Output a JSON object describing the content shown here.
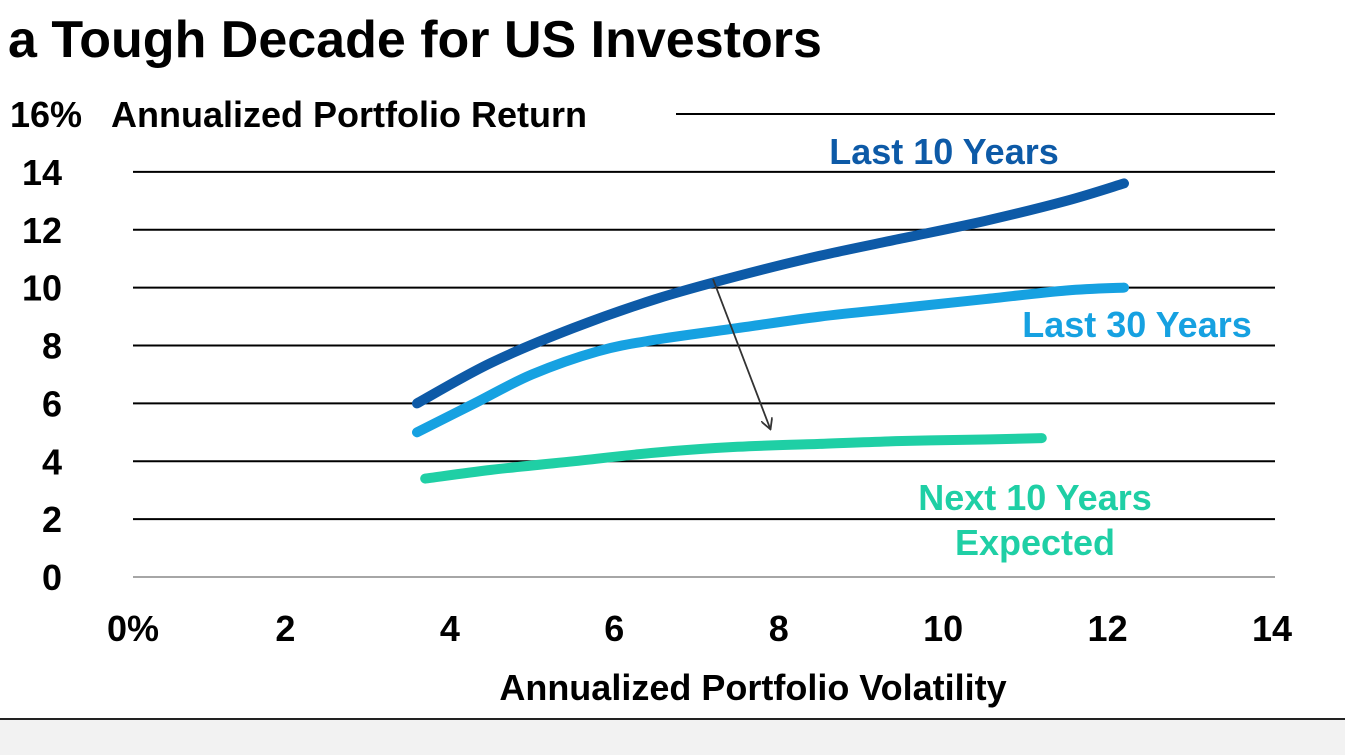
{
  "title": "a Tough Decade for US Investors",
  "chart_data": {
    "type": "line",
    "title": "a Tough Decade for US Investors",
    "ylabel": "Annualized Portfolio Return",
    "ylabel_top_tick": "16%",
    "xlabel": "Annualized Portfolio Volatility",
    "xlim": [
      0,
      14
    ],
    "ylim": [
      0,
      16
    ],
    "x_ticks": [
      "0%",
      "2",
      "4",
      "6",
      "8",
      "10",
      "12",
      "14"
    ],
    "x_tick_values": [
      0,
      2,
      4,
      6,
      8,
      10,
      12,
      14
    ],
    "y_ticks": [
      "0",
      "2",
      "4",
      "6",
      "8",
      "10",
      "12",
      "14"
    ],
    "y_tick_values": [
      0,
      2,
      4,
      6,
      8,
      10,
      12,
      14,
      16
    ],
    "grid": true,
    "series": [
      {
        "name": "Last 10 Years",
        "label_lines": [
          "Last 10 Years"
        ],
        "color": "#0d5aa7",
        "points": [
          [
            3.6,
            6.0
          ],
          [
            4.5,
            7.4
          ],
          [
            5.5,
            8.6
          ],
          [
            6.5,
            9.6
          ],
          [
            7.5,
            10.4
          ],
          [
            8.5,
            11.1
          ],
          [
            9.5,
            11.7
          ],
          [
            10.5,
            12.3
          ],
          [
            11.5,
            13.0
          ],
          [
            12.2,
            13.6
          ]
        ]
      },
      {
        "name": "Last 30 Years",
        "label_lines": [
          "Last 30 Years"
        ],
        "color": "#16a1e1",
        "points": [
          [
            3.6,
            5.0
          ],
          [
            4.3,
            6.0
          ],
          [
            5.0,
            7.0
          ],
          [
            5.8,
            7.8
          ],
          [
            6.5,
            8.2
          ],
          [
            7.5,
            8.6
          ],
          [
            8.5,
            9.0
          ],
          [
            9.5,
            9.3
          ],
          [
            10.5,
            9.6
          ],
          [
            11.5,
            9.9
          ],
          [
            12.2,
            10.0
          ]
        ]
      },
      {
        "name": "Next 10 Years Expected",
        "label_lines": [
          "Next 10 Years",
          "Expected"
        ],
        "color": "#1fcfa5",
        "points": [
          [
            3.7,
            3.4
          ],
          [
            4.5,
            3.7
          ],
          [
            5.5,
            4.0
          ],
          [
            6.5,
            4.3
          ],
          [
            7.5,
            4.5
          ],
          [
            8.5,
            4.6
          ],
          [
            9.5,
            4.7
          ],
          [
            10.5,
            4.75
          ],
          [
            11.2,
            4.8
          ]
        ]
      }
    ],
    "annotations": [
      {
        "type": "arrow",
        "from": [
          7.2,
          10.3
        ],
        "to": [
          7.9,
          5.1
        ]
      }
    ]
  }
}
